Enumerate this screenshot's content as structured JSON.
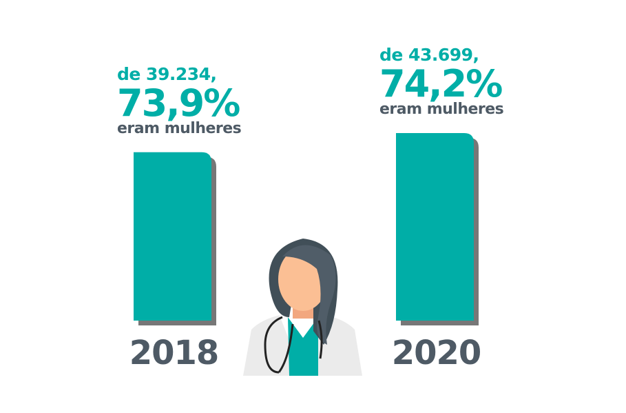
{
  "chart_data": {
    "type": "bar",
    "categories": [
      "2018",
      "2020"
    ],
    "values": [
      39234,
      43699
    ],
    "series": [
      {
        "values": [
          39234,
          43699
        ]
      }
    ],
    "annotations": [
      {
        "de": "de 39.234,",
        "pct": "73,9%",
        "sub": "eram mulheres"
      },
      {
        "de": "de 43.699,",
        "pct": "74,2%",
        "sub": "eram mulheres"
      }
    ],
    "percent_women": [
      73.9,
      74.2
    ],
    "colors": {
      "bar": "#00aea7",
      "shadow": "#777777",
      "text_dark": "#4e5a65"
    }
  }
}
